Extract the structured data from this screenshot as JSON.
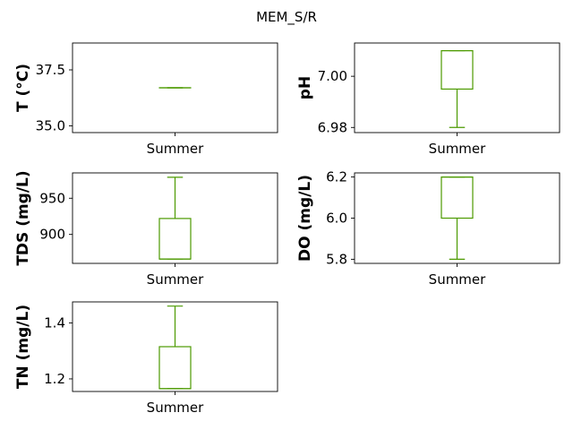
{
  "suptitle": "MEM_S/R",
  "colors": {
    "box": "#4c9a00",
    "axes": "#000000"
  },
  "chart_data": [
    {
      "type": "box",
      "ylabel": "T  (°C)",
      "categories": [
        "Summer"
      ],
      "ylim": [
        34.7,
        38.7
      ],
      "yticks": [
        35.0,
        37.5
      ],
      "ytick_labels": [
        "35.0",
        "37.5"
      ],
      "box": {
        "whislo": 36.7,
        "q1": 36.7,
        "median": 36.7,
        "q3": 36.7,
        "whishi": 36.7
      }
    },
    {
      "type": "box",
      "ylabel": "pH",
      "categories": [
        "Summer"
      ],
      "ylim": [
        6.978,
        7.013
      ],
      "yticks": [
        6.98,
        7.0
      ],
      "ytick_labels": [
        "6.98",
        "7.00"
      ],
      "box": {
        "whislo": 6.98,
        "q1": 6.995,
        "median": 7.01,
        "q3": 7.01,
        "whishi": 7.01
      }
    },
    {
      "type": "box",
      "ylabel": "TDS (mg/L)",
      "categories": [
        "Summer"
      ],
      "ylim": [
        860,
        985
      ],
      "yticks": [
        900,
        950
      ],
      "ytick_labels": [
        "900",
        "950"
      ],
      "box": {
        "whislo": 866,
        "q1": 866,
        "median": 866,
        "q3": 922,
        "whishi": 979
      }
    },
    {
      "type": "box",
      "ylabel": "DO (mg/L)",
      "categories": [
        "Summer"
      ],
      "ylim": [
        5.78,
        6.22
      ],
      "yticks": [
        5.8,
        6.0,
        6.2
      ],
      "ytick_labels": [
        "5.8",
        "6.0",
        "6.2"
      ],
      "box": {
        "whislo": 5.8,
        "q1": 6.0,
        "median": 6.2,
        "q3": 6.2,
        "whishi": 6.2
      }
    },
    {
      "type": "box",
      "ylabel": "TN (mg/L)",
      "categories": [
        "Summer"
      ],
      "ylim": [
        1.155,
        1.475
      ],
      "yticks": [
        1.2,
        1.4
      ],
      "ytick_labels": [
        "1.2",
        "1.4"
      ],
      "box": {
        "whislo": 1.165,
        "q1": 1.165,
        "median": 1.165,
        "q3": 1.315,
        "whishi": 1.46
      }
    }
  ]
}
